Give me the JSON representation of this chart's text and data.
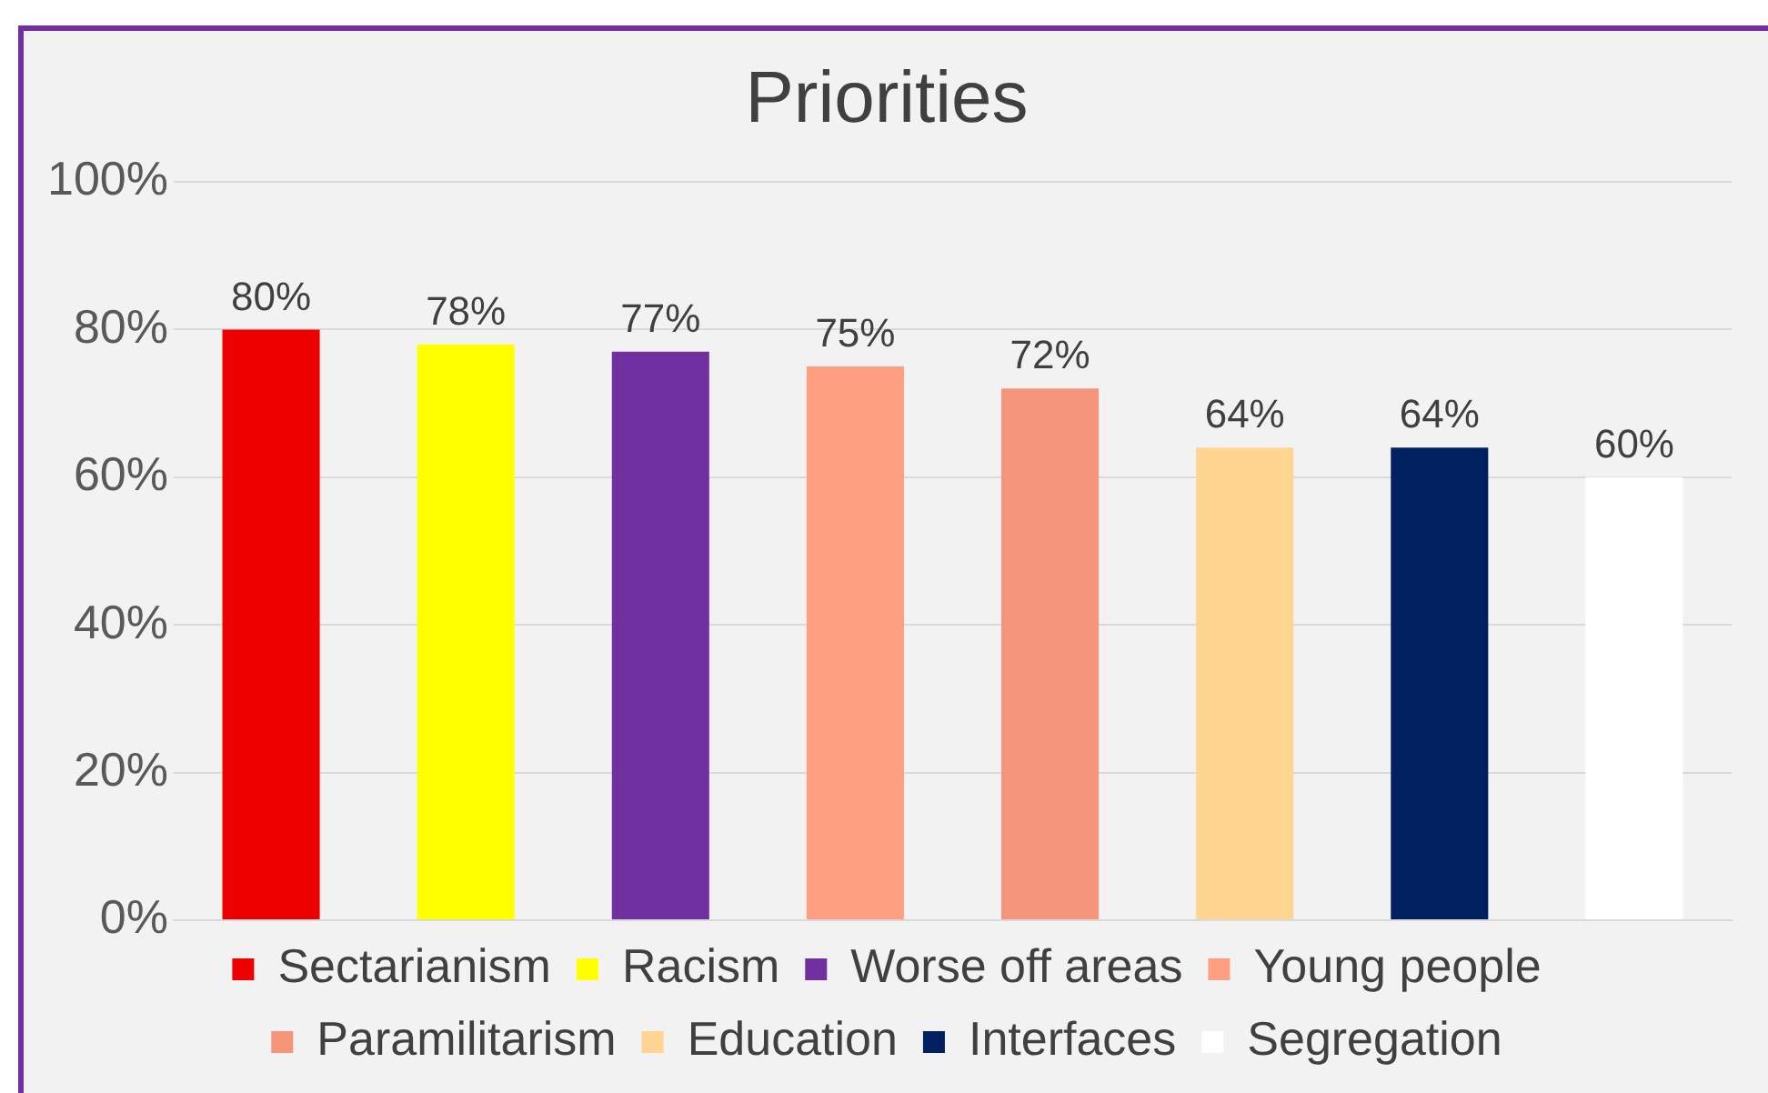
{
  "chart_data": {
    "type": "bar",
    "title": "Priorities",
    "categories": [
      null,
      null,
      null,
      null,
      null,
      null,
      null,
      null
    ],
    "series": [
      {
        "name": "Sectarianism",
        "color": "#ee0000",
        "values": [
          80,
          null,
          null,
          null,
          null,
          null,
          null,
          null
        ]
      },
      {
        "name": "Racism",
        "color": "#ffff00",
        "values": [
          null,
          78,
          null,
          null,
          null,
          null,
          null,
          null
        ]
      },
      {
        "name": "Worse off areas",
        "color": "#7030a0",
        "values": [
          null,
          null,
          77,
          null,
          null,
          null,
          null,
          null
        ]
      },
      {
        "name": "Young people",
        "color": "#ff9e80",
        "values": [
          null,
          null,
          null,
          75,
          null,
          null,
          null,
          null
        ]
      },
      {
        "name": "Paramilitarism",
        "color": "#f4957a",
        "values": [
          null,
          null,
          null,
          null,
          72,
          null,
          null,
          null
        ]
      },
      {
        "name": "Education",
        "color": "#ffd591",
        "values": [
          null,
          null,
          null,
          null,
          null,
          64,
          null,
          null
        ]
      },
      {
        "name": "Interfaces",
        "color": "#002060",
        "values": [
          null,
          null,
          null,
          null,
          null,
          null,
          64,
          null
        ]
      },
      {
        "name": "Segregation",
        "color": "#ffffff",
        "values": [
          null,
          null,
          null,
          null,
          null,
          null,
          null,
          60
        ]
      }
    ],
    "ylim": [
      0,
      100
    ],
    "yticks": [
      {
        "value": 0,
        "label": "0%"
      },
      {
        "value": 20,
        "label": "20%"
      },
      {
        "value": 40,
        "label": "40%"
      },
      {
        "value": 60,
        "label": "60%"
      },
      {
        "value": 80,
        "label": "80%"
      },
      {
        "value": 100,
        "label": "100%"
      }
    ],
    "value_labels": [
      "80%",
      "78%",
      "77%",
      "75%",
      "72%",
      "64%",
      "64%",
      "60%"
    ],
    "grid": "y",
    "legend": "bottom"
  }
}
